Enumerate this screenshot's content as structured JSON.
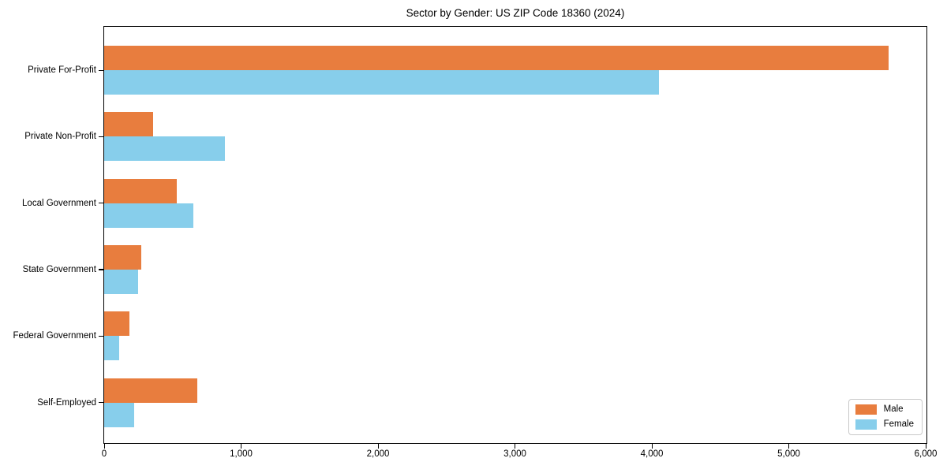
{
  "chart_data": {
    "type": "bar",
    "orientation": "horizontal",
    "title": "Sector by Gender: US ZIP Code 18360 (2024)",
    "categories": [
      "Private For-Profit",
      "Private Non-Profit",
      "Local Government",
      "State Government",
      "Federal Government",
      "Self-Employed"
    ],
    "series": [
      {
        "name": "Male",
        "color": "#E87D3E",
        "values": [
          5730,
          355,
          530,
          270,
          185,
          680
        ]
      },
      {
        "name": "Female",
        "color": "#87CEEB",
        "values": [
          4050,
          880,
          650,
          250,
          110,
          220
        ]
      }
    ],
    "xlim": [
      0,
      6000
    ],
    "xticks": [
      0,
      1000,
      2000,
      3000,
      4000,
      5000,
      6000
    ],
    "xtick_labels": [
      "0",
      "1,000",
      "2,000",
      "3,000",
      "4,000",
      "5,000",
      "6,000"
    ],
    "grid": false,
    "legend_position": "lower right",
    "plot_border_color": "#000000",
    "background_color": "#ffffff"
  }
}
